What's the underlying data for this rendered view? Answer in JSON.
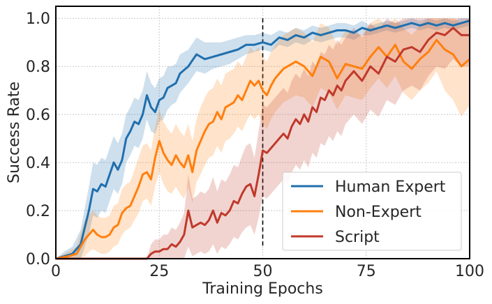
{
  "chart_data": {
    "type": "line",
    "title": "",
    "xlabel": "Training Epochs",
    "ylabel": "Success Rate",
    "xlim": [
      0,
      100
    ],
    "ylim": [
      0,
      1.05
    ],
    "xticks": [
      0,
      25,
      50,
      75,
      100
    ],
    "xtick_labels": [
      "0",
      "25",
      "50",
      "75",
      "100"
    ],
    "yticks": [
      0.0,
      0.2,
      0.4,
      0.6,
      0.8,
      1.0
    ],
    "ytick_labels": [
      "0.0",
      "0.2",
      "0.4",
      "0.6",
      "0.8",
      "1.0"
    ],
    "grid": true,
    "legend_position": "bottom-right",
    "vline": {
      "x": 50,
      "style": "dashed",
      "color": "#000000"
    },
    "series": [
      {
        "name": "Human Expert",
        "color": "#1f6fae",
        "x": [
          0,
          2,
          4,
          6,
          8,
          9,
          10,
          11,
          12,
          13,
          14,
          15,
          16,
          17,
          18,
          19,
          20,
          21,
          22,
          23,
          24,
          25,
          26,
          27,
          28,
          29,
          30,
          32,
          34,
          36,
          38,
          40,
          42,
          44,
          46,
          48,
          50,
          52,
          54,
          56,
          58,
          60,
          62,
          64,
          66,
          68,
          70,
          72,
          74,
          76,
          78,
          80,
          82,
          84,
          86,
          88,
          90,
          92,
          94,
          96,
          98,
          100
        ],
        "y": [
          0.0,
          0.01,
          0.02,
          0.06,
          0.2,
          0.29,
          0.28,
          0.31,
          0.3,
          0.35,
          0.4,
          0.37,
          0.41,
          0.5,
          0.53,
          0.57,
          0.56,
          0.6,
          0.68,
          0.63,
          0.61,
          0.66,
          0.67,
          0.71,
          0.72,
          0.73,
          0.77,
          0.8,
          0.85,
          0.83,
          0.84,
          0.85,
          0.86,
          0.87,
          0.89,
          0.89,
          0.9,
          0.89,
          0.92,
          0.91,
          0.93,
          0.92,
          0.94,
          0.93,
          0.94,
          0.95,
          0.95,
          0.94,
          0.96,
          0.95,
          0.96,
          0.97,
          0.96,
          0.97,
          0.98,
          0.97,
          0.98,
          0.97,
          0.98,
          0.97,
          0.98,
          0.99
        ],
        "lower": [
          0.0,
          0.0,
          0.0,
          0.0,
          0.1,
          0.18,
          0.17,
          0.2,
          0.19,
          0.24,
          0.29,
          0.27,
          0.31,
          0.4,
          0.43,
          0.47,
          0.46,
          0.5,
          0.58,
          0.53,
          0.52,
          0.57,
          0.58,
          0.62,
          0.64,
          0.65,
          0.69,
          0.73,
          0.78,
          0.77,
          0.79,
          0.8,
          0.81,
          0.83,
          0.85,
          0.86,
          0.87,
          0.86,
          0.89,
          0.88,
          0.9,
          0.89,
          0.91,
          0.9,
          0.91,
          0.92,
          0.92,
          0.91,
          0.93,
          0.93,
          0.94,
          0.95,
          0.94,
          0.95,
          0.96,
          0.95,
          0.96,
          0.95,
          0.96,
          0.95,
          0.96,
          0.97
        ],
        "upper": [
          0.0,
          0.03,
          0.05,
          0.12,
          0.3,
          0.4,
          0.39,
          0.42,
          0.41,
          0.46,
          0.51,
          0.48,
          0.52,
          0.6,
          0.63,
          0.67,
          0.66,
          0.7,
          0.78,
          0.73,
          0.71,
          0.75,
          0.76,
          0.8,
          0.8,
          0.81,
          0.85,
          0.87,
          0.92,
          0.9,
          0.9,
          0.9,
          0.91,
          0.92,
          0.93,
          0.93,
          0.94,
          0.93,
          0.95,
          0.94,
          0.96,
          0.95,
          0.97,
          0.96,
          0.97,
          0.98,
          0.98,
          0.97,
          0.99,
          0.97,
          0.98,
          0.99,
          0.98,
          0.99,
          1.0,
          0.99,
          1.0,
          0.99,
          1.0,
          0.99,
          1.0,
          1.0
        ]
      },
      {
        "name": "Non-Expert",
        "color": "#ff7f0e",
        "x": [
          0,
          3,
          5,
          7,
          8,
          9,
          10,
          11,
          12,
          13,
          14,
          15,
          16,
          17,
          18,
          19,
          20,
          21,
          22,
          23,
          24,
          25,
          26,
          27,
          28,
          29,
          30,
          31,
          32,
          33,
          34,
          35,
          36,
          37,
          38,
          39,
          40,
          41,
          42,
          43,
          44,
          45,
          46,
          47,
          48,
          49,
          50,
          51,
          52,
          53,
          54,
          55,
          56,
          58,
          60,
          62,
          64,
          66,
          68,
          70,
          72,
          74,
          76,
          78,
          80,
          82,
          84,
          86,
          88,
          90,
          92,
          94,
          96,
          98,
          100
        ],
        "y": [
          0.0,
          0.01,
          0.02,
          0.08,
          0.1,
          0.12,
          0.1,
          0.09,
          0.09,
          0.1,
          0.13,
          0.14,
          0.19,
          0.21,
          0.22,
          0.26,
          0.3,
          0.35,
          0.36,
          0.33,
          0.42,
          0.49,
          0.44,
          0.41,
          0.39,
          0.43,
          0.4,
          0.38,
          0.43,
          0.36,
          0.45,
          0.49,
          0.53,
          0.56,
          0.57,
          0.61,
          0.58,
          0.63,
          0.64,
          0.65,
          0.68,
          0.66,
          0.7,
          0.74,
          0.72,
          0.74,
          0.7,
          0.68,
          0.72,
          0.75,
          0.77,
          0.79,
          0.8,
          0.82,
          0.8,
          0.76,
          0.84,
          0.82,
          0.75,
          0.81,
          0.8,
          0.79,
          0.84,
          0.88,
          0.84,
          0.89,
          0.82,
          0.79,
          0.83,
          0.86,
          0.91,
          0.87,
          0.85,
          0.8,
          0.83
        ],
        "lower": [
          0.0,
          0.0,
          0.0,
          0.01,
          0.03,
          0.04,
          0.03,
          0.02,
          0.02,
          0.03,
          0.05,
          0.06,
          0.1,
          0.12,
          0.13,
          0.16,
          0.19,
          0.24,
          0.25,
          0.22,
          0.3,
          0.36,
          0.31,
          0.28,
          0.27,
          0.3,
          0.27,
          0.25,
          0.3,
          0.23,
          0.32,
          0.35,
          0.39,
          0.42,
          0.43,
          0.47,
          0.44,
          0.49,
          0.5,
          0.52,
          0.55,
          0.53,
          0.57,
          0.6,
          0.58,
          0.6,
          0.56,
          0.54,
          0.58,
          0.61,
          0.63,
          0.65,
          0.66,
          0.68,
          0.67,
          0.63,
          0.71,
          0.69,
          0.62,
          0.68,
          0.67,
          0.66,
          0.71,
          0.75,
          0.71,
          0.76,
          0.69,
          0.66,
          0.7,
          0.73,
          0.78,
          0.7,
          0.66,
          0.59,
          0.64
        ],
        "upper": [
          0.0,
          0.03,
          0.05,
          0.16,
          0.18,
          0.2,
          0.18,
          0.17,
          0.17,
          0.18,
          0.22,
          0.23,
          0.29,
          0.31,
          0.32,
          0.37,
          0.42,
          0.47,
          0.48,
          0.45,
          0.55,
          0.62,
          0.57,
          0.54,
          0.52,
          0.56,
          0.53,
          0.51,
          0.56,
          0.49,
          0.58,
          0.63,
          0.67,
          0.7,
          0.71,
          0.75,
          0.72,
          0.77,
          0.78,
          0.79,
          0.82,
          0.8,
          0.84,
          0.88,
          0.86,
          0.88,
          0.84,
          0.82,
          0.86,
          0.89,
          0.91,
          0.93,
          0.94,
          0.96,
          0.94,
          0.9,
          0.98,
          0.96,
          0.89,
          0.95,
          0.94,
          0.93,
          0.98,
          1.0,
          0.97,
          1.0,
          0.96,
          0.93,
          0.97,
          1.0,
          1.0,
          1.0,
          1.0,
          0.98,
          1.0
        ]
      },
      {
        "name": "Script",
        "color": "#c0392b",
        "x": [
          0,
          5,
          10,
          15,
          20,
          21,
          22,
          23,
          24,
          25,
          26,
          27,
          28,
          29,
          30,
          31,
          32,
          33,
          34,
          35,
          36,
          37,
          38,
          39,
          40,
          41,
          42,
          43,
          44,
          45,
          46,
          47,
          48,
          49,
          50,
          51,
          52,
          53,
          54,
          55,
          56,
          57,
          58,
          59,
          60,
          61,
          62,
          63,
          64,
          65,
          66,
          67,
          68,
          69,
          70,
          72,
          74,
          76,
          78,
          80,
          82,
          84,
          86,
          88,
          90,
          92,
          94,
          96,
          98,
          100
        ],
        "y": [
          0.0,
          0.0,
          0.0,
          0.0,
          0.0,
          0.0,
          0.0,
          0.02,
          0.03,
          0.03,
          0.04,
          0.04,
          0.06,
          0.05,
          0.07,
          0.1,
          0.2,
          0.13,
          0.14,
          0.15,
          0.14,
          0.16,
          0.2,
          0.15,
          0.19,
          0.18,
          0.2,
          0.24,
          0.23,
          0.27,
          0.3,
          0.31,
          0.26,
          0.35,
          0.45,
          0.44,
          0.46,
          0.48,
          0.5,
          0.52,
          0.5,
          0.55,
          0.58,
          0.56,
          0.6,
          0.57,
          0.63,
          0.61,
          0.67,
          0.66,
          0.7,
          0.68,
          0.72,
          0.7,
          0.74,
          0.78,
          0.74,
          0.8,
          0.77,
          0.84,
          0.82,
          0.87,
          0.88,
          0.86,
          0.91,
          0.94,
          0.93,
          0.96,
          0.93,
          0.93
        ],
        "lower": [
          0.0,
          0.0,
          0.0,
          0.0,
          0.0,
          0.0,
          0.0,
          0.0,
          0.0,
          0.0,
          0.0,
          0.0,
          0.0,
          0.0,
          0.0,
          0.0,
          0.05,
          0.01,
          0.02,
          0.03,
          0.02,
          0.03,
          0.06,
          0.02,
          0.05,
          0.04,
          0.06,
          0.09,
          0.08,
          0.11,
          0.13,
          0.14,
          0.1,
          0.17,
          0.26,
          0.25,
          0.27,
          0.29,
          0.31,
          0.33,
          0.31,
          0.36,
          0.39,
          0.37,
          0.41,
          0.38,
          0.44,
          0.42,
          0.48,
          0.47,
          0.51,
          0.49,
          0.53,
          0.51,
          0.56,
          0.6,
          0.56,
          0.62,
          0.59,
          0.66,
          0.64,
          0.7,
          0.72,
          0.7,
          0.76,
          0.8,
          0.79,
          0.83,
          0.8,
          0.8
        ],
        "upper": [
          0.0,
          0.0,
          0.0,
          0.0,
          0.0,
          0.0,
          0.0,
          0.06,
          0.08,
          0.08,
          0.1,
          0.1,
          0.13,
          0.12,
          0.15,
          0.19,
          0.35,
          0.25,
          0.26,
          0.28,
          0.27,
          0.29,
          0.34,
          0.28,
          0.33,
          0.32,
          0.35,
          0.39,
          0.38,
          0.43,
          0.47,
          0.48,
          0.42,
          0.53,
          0.64,
          0.63,
          0.65,
          0.67,
          0.69,
          0.71,
          0.69,
          0.74,
          0.77,
          0.75,
          0.79,
          0.76,
          0.82,
          0.8,
          0.86,
          0.85,
          0.89,
          0.87,
          0.91,
          0.89,
          0.92,
          0.96,
          0.92,
          0.98,
          0.95,
          1.0,
          0.98,
          1.0,
          1.0,
          1.0,
          1.0,
          1.0,
          1.0,
          1.0,
          1.0,
          1.0
        ]
      }
    ]
  }
}
